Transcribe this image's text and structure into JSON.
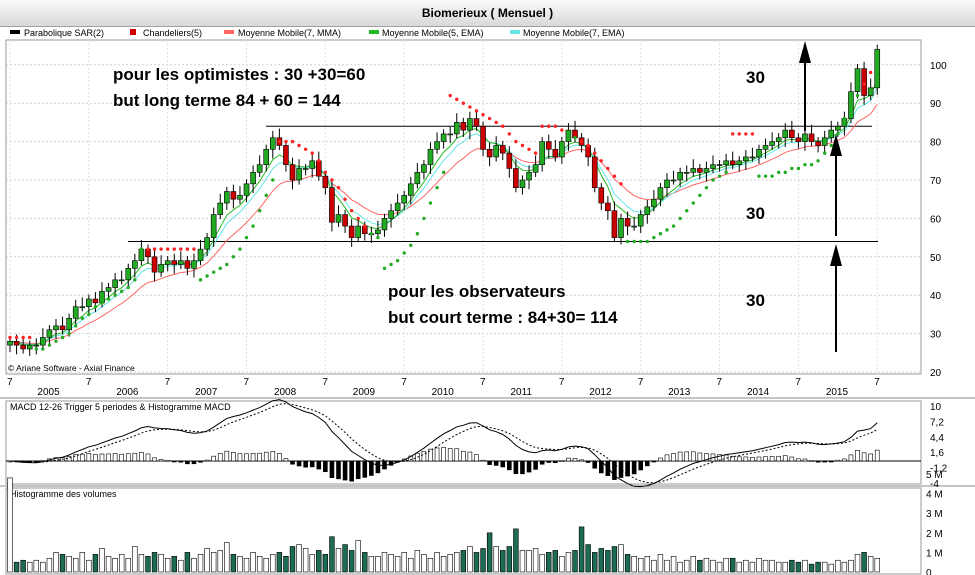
{
  "title": "Biomerieux  ( Mensuel )",
  "legend": [
    {
      "label": "Parabolique SAR(2)",
      "color": "#000000"
    },
    {
      "label": "Chandeliers(5)",
      "color": "#cc0000"
    },
    {
      "label": "Moyenne Mobile(7, MMA)",
      "color": "#ff6666"
    },
    {
      "label": "Moyenne Mobile(5, EMA)",
      "color": "#22bb22"
    },
    {
      "label": "Moyenne Mobile(7, EMA)",
      "color": "#66e6e6"
    }
  ],
  "copyright": "© Ariane Software - Axial Finance",
  "annotations": {
    "optimists_line1": "pour les optimistes : 30 +30=60",
    "optimists_line2": "but long terme 84 + 60 = 144",
    "observers_line1": "pour les observateurs",
    "observers_line2": "but court terme : 84+30= 114",
    "label_top": "30",
    "label_mid": "30",
    "label_bottom": "30"
  },
  "colors": {
    "up": "#22aa22",
    "down": "#cc0000",
    "sar_up": "#22aa22",
    "sar_down": "#ff2222"
  },
  "chart_data": [
    {
      "type": "candlestick",
      "title": "Biomerieux  ( Mensuel )",
      "x_year_labels": [
        "2005",
        "2006",
        "2007",
        "2008",
        "2009",
        "2010",
        "2011",
        "2012",
        "2013",
        "2014",
        "2015"
      ],
      "x_month_labels": [
        "7",
        "7",
        "7",
        "7",
        "7",
        "7",
        "7",
        "7",
        "7",
        "7",
        "7",
        "7"
      ],
      "y_ticks": [
        20,
        30,
        40,
        50,
        60,
        70,
        80,
        90,
        100
      ],
      "ylim": [
        20,
        106
      ],
      "grid": true,
      "start": "2004-07",
      "horizontal_lines": [
        84,
        54
      ],
      "closes": [
        28,
        27,
        26,
        27,
        27,
        29,
        31,
        32,
        31,
        34,
        37,
        37,
        39,
        38,
        41,
        42,
        44,
        44,
        47,
        49,
        52,
        50,
        46,
        48,
        49,
        48,
        49,
        47,
        49,
        52,
        55,
        61,
        64,
        67,
        65,
        66,
        69,
        72,
        74,
        78,
        81,
        79,
        74,
        70,
        73,
        73,
        75,
        71,
        68,
        59,
        61,
        58,
        55,
        58,
        56,
        56,
        57,
        60,
        62,
        64,
        66,
        69,
        72,
        74,
        78,
        80,
        82,
        82,
        85,
        83,
        86,
        84,
        78,
        76,
        79,
        77,
        73,
        68,
        70,
        72,
        74,
        80,
        78,
        76,
        80,
        83,
        81,
        79,
        76,
        68,
        64,
        62,
        55,
        60,
        58,
        58,
        61,
        63,
        65,
        68,
        70,
        70,
        72,
        72,
        73,
        72,
        73,
        74,
        74,
        75,
        74,
        75,
        76,
        76,
        78,
        79,
        80,
        81,
        83,
        81,
        80,
        82,
        80,
        79,
        81,
        83,
        84,
        86,
        93,
        99,
        92,
        94,
        104
      ],
      "sar": [
        {
          "i": 0,
          "v": 29
        },
        {
          "i": 1,
          "v": 29
        },
        {
          "i": 2,
          "v": 29
        },
        {
          "i": 3,
          "v": 29
        },
        {
          "i": 4,
          "v": 26
        },
        {
          "i": 5,
          "v": 26
        },
        {
          "i": 6,
          "v": 27
        },
        {
          "i": 7,
          "v": 28
        },
        {
          "i": 8,
          "v": 29
        },
        {
          "i": 9,
          "v": 30
        },
        {
          "i": 10,
          "v": 32
        },
        {
          "i": 11,
          "v": 34
        },
        {
          "i": 12,
          "v": 35
        },
        {
          "i": 13,
          "v": 37
        },
        {
          "i": 14,
          "v": 38
        },
        {
          "i": 15,
          "v": 39
        },
        {
          "i": 16,
          "v": 40
        },
        {
          "i": 17,
          "v": 41
        },
        {
          "i": 18,
          "v": 42
        },
        {
          "i": 19,
          "v": 44
        },
        {
          "i": 20,
          "v": 52
        },
        {
          "i": 21,
          "v": 52
        },
        {
          "i": 22,
          "v": 52
        },
        {
          "i": 23,
          "v": 52
        },
        {
          "i": 24,
          "v": 52
        },
        {
          "i": 25,
          "v": 52
        },
        {
          "i": 26,
          "v": 52
        },
        {
          "i": 27,
          "v": 52
        },
        {
          "i": 28,
          "v": 52
        },
        {
          "i": 29,
          "v": 44
        },
        {
          "i": 30,
          "v": 45
        },
        {
          "i": 31,
          "v": 46
        },
        {
          "i": 32,
          "v": 47
        },
        {
          "i": 33,
          "v": 48
        },
        {
          "i": 34,
          "v": 50
        },
        {
          "i": 35,
          "v": 52
        },
        {
          "i": 36,
          "v": 55
        },
        {
          "i": 37,
          "v": 58
        },
        {
          "i": 38,
          "v": 62
        },
        {
          "i": 39,
          "v": 66
        },
        {
          "i": 40,
          "v": 70
        },
        {
          "i": 41,
          "v": 80
        },
        {
          "i": 42,
          "v": 80
        },
        {
          "i": 43,
          "v": 80
        },
        {
          "i": 44,
          "v": 79
        },
        {
          "i": 45,
          "v": 78
        },
        {
          "i": 46,
          "v": 77
        },
        {
          "i": 47,
          "v": 75
        },
        {
          "i": 48,
          "v": 72
        },
        {
          "i": 49,
          "v": 70
        },
        {
          "i": 50,
          "v": 68
        },
        {
          "i": 51,
          "v": 65
        },
        {
          "i": 52,
          "v": 62
        },
        {
          "i": 53,
          "v": 60
        },
        {
          "i": 54,
          "v": 58
        },
        {
          "i": 55,
          "v": 56
        },
        {
          "i": 56,
          "v": 55
        },
        {
          "i": 57,
          "v": 47
        },
        {
          "i": 58,
          "v": 48
        },
        {
          "i": 59,
          "v": 49
        },
        {
          "i": 60,
          "v": 51
        },
        {
          "i": 61,
          "v": 53
        },
        {
          "i": 62,
          "v": 56
        },
        {
          "i": 63,
          "v": 60
        },
        {
          "i": 64,
          "v": 64
        },
        {
          "i": 65,
          "v": 68
        },
        {
          "i": 66,
          "v": 72
        },
        {
          "i": 67,
          "v": 92
        },
        {
          "i": 68,
          "v": 91
        },
        {
          "i": 69,
          "v": 90
        },
        {
          "i": 70,
          "v": 89
        },
        {
          "i": 71,
          "v": 88
        },
        {
          "i": 72,
          "v": 87
        },
        {
          "i": 73,
          "v": 86
        },
        {
          "i": 74,
          "v": 85
        },
        {
          "i": 75,
          "v": 84
        },
        {
          "i": 76,
          "v": 82
        },
        {
          "i": 77,
          "v": 80
        },
        {
          "i": 78,
          "v": 79
        },
        {
          "i": 79,
          "v": 78
        },
        {
          "i": 80,
          "v": 77
        },
        {
          "i": 81,
          "v": 84
        },
        {
          "i": 82,
          "v": 84
        },
        {
          "i": 83,
          "v": 84
        },
        {
          "i": 84,
          "v": 83
        },
        {
          "i": 85,
          "v": 82
        },
        {
          "i": 86,
          "v": 81
        },
        {
          "i": 87,
          "v": 80
        },
        {
          "i": 88,
          "v": 79
        },
        {
          "i": 89,
          "v": 77
        },
        {
          "i": 90,
          "v": 75
        },
        {
          "i": 91,
          "v": 73
        },
        {
          "i": 92,
          "v": 71
        },
        {
          "i": 93,
          "v": 69
        },
        {
          "i": 94,
          "v": 54
        },
        {
          "i": 95,
          "v": 54
        },
        {
          "i": 96,
          "v": 54
        },
        {
          "i": 97,
          "v": 54
        },
        {
          "i": 98,
          "v": 55
        },
        {
          "i": 99,
          "v": 56
        },
        {
          "i": 100,
          "v": 57
        },
        {
          "i": 101,
          "v": 58
        },
        {
          "i": 102,
          "v": 60
        },
        {
          "i": 103,
          "v": 62
        },
        {
          "i": 104,
          "v": 64
        },
        {
          "i": 105,
          "v": 66
        },
        {
          "i": 106,
          "v": 68
        },
        {
          "i": 107,
          "v": 70
        },
        {
          "i": 108,
          "v": 71
        },
        {
          "i": 109,
          "v": 72
        },
        {
          "i": 110,
          "v": 82
        },
        {
          "i": 111,
          "v": 82
        },
        {
          "i": 112,
          "v": 82
        },
        {
          "i": 113,
          "v": 82
        },
        {
          "i": 114,
          "v": 71
        },
        {
          "i": 115,
          "v": 71
        },
        {
          "i": 116,
          "v": 71
        },
        {
          "i": 117,
          "v": 72
        },
        {
          "i": 118,
          "v": 72
        },
        {
          "i": 119,
          "v": 73
        },
        {
          "i": 120,
          "v": 73
        },
        {
          "i": 121,
          "v": 74
        },
        {
          "i": 122,
          "v": 74
        },
        {
          "i": 123,
          "v": 75
        },
        {
          "i": 124,
          "v": 77
        },
        {
          "i": 125,
          "v": 79
        },
        {
          "i": 126,
          "v": 82
        },
        {
          "i": 127,
          "v": 86
        },
        {
          "i": 128,
          "v": 88
        },
        {
          "i": 129,
          "v": 92
        },
        {
          "i": 130,
          "v": 95
        },
        {
          "i": 131,
          "v": 98
        }
      ]
    },
    {
      "type": "line",
      "title": "MACD 12-26   Trigger 5 periodes & Histogramme MACD",
      "y_ticks": [
        "10",
        "7,2",
        "4,4",
        "1,6",
        "-1,2",
        "-4"
      ],
      "ylim": [
        -4,
        10
      ],
      "note": "MACD line, trigger line and histogram derived from the monthly closes"
    },
    {
      "type": "bar",
      "title": "Histogramme des volumes",
      "y_ticks": [
        "5 M",
        "4 M",
        "3 M",
        "2 M",
        "1 M",
        "0"
      ],
      "ylim": [
        0,
        5.3
      ],
      "unit": "M",
      "volumes": [
        4.8,
        0.5,
        0.6,
        0.5,
        0.6,
        0.5,
        0.7,
        1.0,
        0.9,
        0.8,
        0.7,
        1.0,
        0.6,
        0.9,
        1.2,
        0.8,
        0.7,
        0.9,
        0.7,
        1.3,
        0.9,
        0.8,
        1.0,
        0.9,
        0.7,
        0.8,
        0.6,
        1.0,
        0.7,
        0.9,
        1.2,
        1.0,
        1.1,
        1.5,
        0.9,
        0.8,
        0.7,
        1.0,
        0.8,
        0.7,
        0.9,
        1.0,
        0.8,
        1.3,
        1.4,
        1.2,
        0.9,
        1.1,
        0.9,
        1.8,
        1.2,
        1.4,
        1.1,
        1.6,
        1.0,
        0.8,
        0.8,
        1.0,
        0.9,
        0.8,
        1.0,
        0.7,
        1.1,
        0.9,
        0.7,
        1.0,
        0.8,
        0.9,
        1.0,
        1.1,
        1.3,
        1.0,
        1.2,
        2.0,
        1.3,
        1.1,
        1.3,
        2.2,
        1.1,
        1.1,
        1.2,
        0.9,
        1.0,
        1.1,
        0.8,
        1.0,
        1.1,
        2.3,
        1.4,
        1.0,
        1.2,
        1.1,
        1.3,
        1.4,
        0.9,
        0.8,
        0.7,
        0.8,
        0.6,
        0.9,
        0.6,
        0.8,
        0.5,
        0.6,
        0.8,
        0.6,
        0.7,
        0.6,
        0.5,
        0.7,
        0.7,
        0.5,
        0.6,
        0.5,
        0.7,
        0.6,
        0.6,
        0.5,
        0.5,
        0.6,
        0.5,
        0.6,
        0.4,
        0.5,
        0.5,
        0.4,
        0.6,
        0.5,
        0.6,
        0.9,
        1.0,
        0.8,
        0.7
      ]
    }
  ]
}
